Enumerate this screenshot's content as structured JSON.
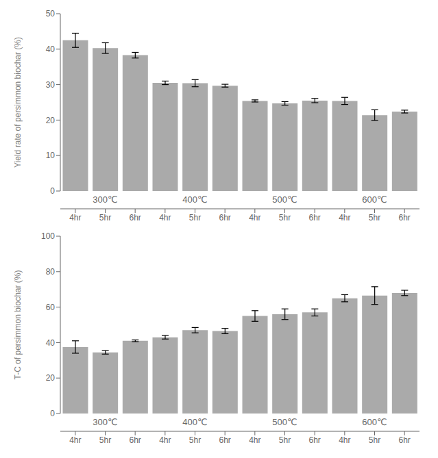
{
  "chart_data": [
    {
      "type": "bar",
      "categories": [
        "4hr",
        "5hr",
        "6hr",
        "4hr",
        "5hr",
        "6hr",
        "4hr",
        "5hr",
        "6hr",
        "4hr",
        "5hr",
        "6hr"
      ],
      "values": [
        42.5,
        40.3,
        38.3,
        30.5,
        30.4,
        29.7,
        25.4,
        24.7,
        25.5,
        25.4,
        21.4,
        22.4
      ],
      "errors": [
        2.0,
        1.5,
        0.8,
        0.5,
        1.0,
        0.4,
        0.3,
        0.5,
        0.6,
        1.0,
        1.5,
        0.4
      ],
      "annotations": [
        "300℃",
        "400℃",
        "500℃",
        "600℃"
      ],
      "ylabel": "Yield rate of persimmon biochar (%)",
      "color": "#aaaaaa",
      "ylim": [
        0,
        50
      ],
      "yticks": [
        0,
        10,
        20,
        30,
        40,
        50
      ],
      "grid": false
    },
    {
      "type": "bar",
      "categories": [
        "4hr",
        "5hr",
        "6hr",
        "4hr",
        "5hr",
        "6hr",
        "4hr",
        "5hr",
        "6hr",
        "4hr",
        "5hr",
        "6hr"
      ],
      "values": [
        37.5,
        34.5,
        41.0,
        43.0,
        47.0,
        46.5,
        55.0,
        56.0,
        57.0,
        65.0,
        66.5,
        68.0
      ],
      "errors": [
        3.5,
        1.0,
        0.5,
        1.0,
        1.5,
        1.5,
        3.0,
        3.0,
        2.0,
        2.0,
        5.0,
        1.5
      ],
      "annotations": [
        "300℃",
        "400℃",
        "500℃",
        "600℃"
      ],
      "ylabel": "T-C of persimmon biochar (%)",
      "color": "#aaaaaa",
      "ylim": [
        0,
        100
      ],
      "yticks": [
        0,
        20,
        40,
        60,
        80,
        100
      ],
      "grid": false
    }
  ]
}
